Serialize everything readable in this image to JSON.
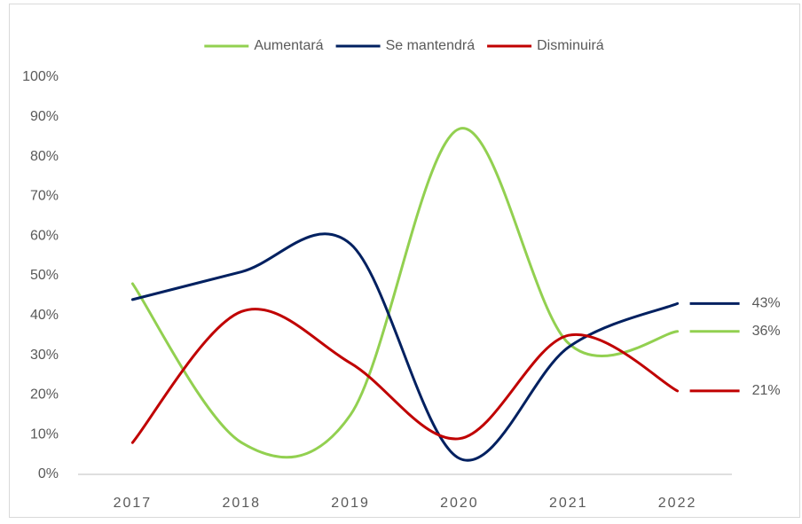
{
  "chart_data": {
    "type": "line",
    "categories": [
      "2017",
      "2018",
      "2019",
      "2020",
      "2021",
      "2022"
    ],
    "series": [
      {
        "name": "Aumentará",
        "color": "#92d050",
        "values": [
          48,
          8,
          15,
          87,
          33,
          36
        ],
        "value_labels": [
          null,
          null,
          null,
          null,
          null,
          "36%"
        ]
      },
      {
        "name": "Se mantendrá",
        "color": "#002060",
        "values": [
          44,
          51,
          58,
          4,
          32,
          43
        ],
        "value_labels": [
          null,
          null,
          null,
          null,
          null,
          "43%"
        ]
      },
      {
        "name": "Disminuirá",
        "color": "#c00000",
        "values": [
          8,
          41,
          28,
          9,
          35,
          21
        ],
        "value_labels": [
          null,
          null,
          null,
          null,
          null,
          "21%"
        ]
      }
    ],
    "ylim": [
      0,
      100
    ],
    "yticks": [
      {
        "value": 0,
        "label": "0%"
      },
      {
        "value": 10,
        "label": "10%"
      },
      {
        "value": 20,
        "label": "20%"
      },
      {
        "value": 30,
        "label": "30%"
      },
      {
        "value": 40,
        "label": "40%"
      },
      {
        "value": 50,
        "label": "50%"
      },
      {
        "value": 60,
        "label": "60%"
      },
      {
        "value": 70,
        "label": "70%"
      },
      {
        "value": 80,
        "label": "80%"
      },
      {
        "value": 90,
        "label": "90%"
      },
      {
        "value": 100,
        "label": "100%"
      }
    ],
    "legend": "top",
    "grid": false
  }
}
